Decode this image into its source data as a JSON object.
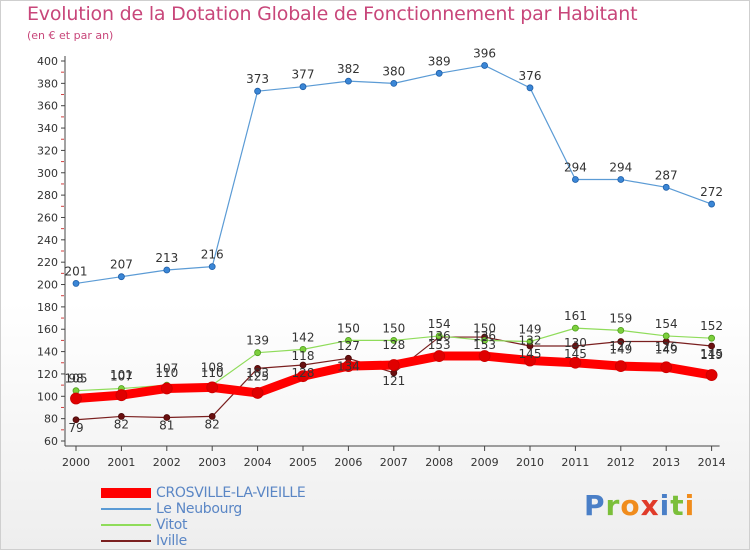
{
  "title": "Evolution de la Dotation Globale de Fonctionnement par Habitant",
  "subtitle": "(en € et par an)",
  "logo_text": "Proxiti",
  "chart_data": {
    "type": "line",
    "title": "Evolution de la Dotation Globale de Fonctionnement par Habitant",
    "subtitle": "(en € et par an)",
    "x": [
      2000,
      2001,
      2002,
      2003,
      2004,
      2005,
      2006,
      2007,
      2008,
      2009,
      2010,
      2011,
      2012,
      2013,
      2014
    ],
    "ylim": [
      60,
      400
    ],
    "yticks": [
      60,
      80,
      100,
      120,
      140,
      160,
      180,
      200,
      220,
      240,
      260,
      280,
      300,
      320,
      340,
      360,
      380,
      400
    ],
    "grid": false,
    "legend_position": "bottom-left",
    "series": [
      {
        "name": "CROSVILLE-LA-VIEILLE",
        "color": "#ff0000",
        "values": [
          98,
          101,
          107,
          108,
          103,
          118,
          127,
          128,
          136,
          136,
          132,
          130,
          127,
          126,
          119
        ]
      },
      {
        "name": "Le Neubourg",
        "color": "#5b9bd5",
        "values": [
          201,
          207,
          213,
          216,
          373,
          377,
          382,
          380,
          389,
          396,
          376,
          294,
          294,
          287,
          272
        ]
      },
      {
        "name": "Vitot",
        "color": "#8fdc5a",
        "values": [
          105,
          107,
          110,
          110,
          139,
          142,
          150,
          150,
          154,
          150,
          149,
          161,
          159,
          154,
          152
        ]
      },
      {
        "name": "Iville",
        "color": "#7a1f1f",
        "values": [
          79,
          82,
          81,
          82,
          125,
          128,
          134,
          121,
          153,
          153,
          145,
          145,
          149,
          149,
          145
        ]
      }
    ]
  }
}
